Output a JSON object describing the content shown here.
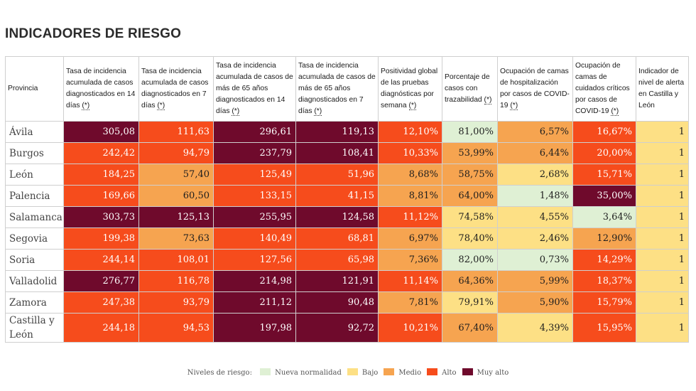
{
  "title": "INDICADORES DE RIESGO",
  "columns": [
    {
      "text": "Provincia",
      "star": ""
    },
    {
      "text": "Tasa de incidencia acumulada de casos diagnosticados en 14 días ",
      "star": "(*)"
    },
    {
      "text": "Tasa de incidencia acumulada de casos diagnosticados en 7 días ",
      "star": "(*)"
    },
    {
      "text": "Tasa de incidencia acumulada de casos de más de 65 años diagnosticados en 14 días ",
      "star": "(*)"
    },
    {
      "text": "Tasa de incidencia acumulada de casos de más de 65 años diagnosticados en 7 días ",
      "star": "(*)"
    },
    {
      "text": "Positividad global de las pruebas diagnósticas por semana ",
      "star": "(*)"
    },
    {
      "text": "Porcentaje de casos con trazabilidad ",
      "star": "(*)"
    },
    {
      "text": "Ocupación de camas de hospitalización por casos de COVID-19 ",
      "star": "(*)"
    },
    {
      "text": "Ocupación de camas de cuidados críticos por casos de COVID-19 ",
      "star": "(*)"
    },
    {
      "text": "Indicador de nivel de alerta en Castilla y León",
      "star": ""
    }
  ],
  "rows": [
    {
      "province": "Ávila",
      "cells": [
        {
          "v": "305,08",
          "lvl": "VH"
        },
        {
          "v": "111,63",
          "lvl": "H"
        },
        {
          "v": "296,61",
          "lvl": "VH"
        },
        {
          "v": "119,13",
          "lvl": "VH"
        },
        {
          "v": "12,10%",
          "lvl": "H"
        },
        {
          "v": "81,00%",
          "lvl": "N"
        },
        {
          "v": "6,57%",
          "lvl": "M"
        },
        {
          "v": "16,67%",
          "lvl": "H"
        },
        {
          "v": "1",
          "lvl": "L"
        }
      ]
    },
    {
      "province": "Burgos",
      "cells": [
        {
          "v": "242,42",
          "lvl": "H"
        },
        {
          "v": "94,79",
          "lvl": "H"
        },
        {
          "v": "237,79",
          "lvl": "VH"
        },
        {
          "v": "108,41",
          "lvl": "VH"
        },
        {
          "v": "10,33%",
          "lvl": "H"
        },
        {
          "v": "53,99%",
          "lvl": "M"
        },
        {
          "v": "6,44%",
          "lvl": "M"
        },
        {
          "v": "20,00%",
          "lvl": "H"
        },
        {
          "v": "1",
          "lvl": "L"
        }
      ]
    },
    {
      "province": "León",
      "cells": [
        {
          "v": "184,25",
          "lvl": "H"
        },
        {
          "v": "57,40",
          "lvl": "M"
        },
        {
          "v": "125,49",
          "lvl": "H"
        },
        {
          "v": "51,96",
          "lvl": "H"
        },
        {
          "v": "8,68%",
          "lvl": "M"
        },
        {
          "v": "58,75%",
          "lvl": "M"
        },
        {
          "v": "2,68%",
          "lvl": "L"
        },
        {
          "v": "15,71%",
          "lvl": "H"
        },
        {
          "v": "1",
          "lvl": "L"
        }
      ]
    },
    {
      "province": "Palencia",
      "cells": [
        {
          "v": "169,66",
          "lvl": "H"
        },
        {
          "v": "60,50",
          "lvl": "M"
        },
        {
          "v": "133,15",
          "lvl": "H"
        },
        {
          "v": "41,15",
          "lvl": "H"
        },
        {
          "v": "8,81%",
          "lvl": "M"
        },
        {
          "v": "64,00%",
          "lvl": "M"
        },
        {
          "v": "1,48%",
          "lvl": "N"
        },
        {
          "v": "35,00%",
          "lvl": "VH"
        },
        {
          "v": "1",
          "lvl": "L"
        }
      ]
    },
    {
      "province": "Salamanca",
      "cells": [
        {
          "v": "303,73",
          "lvl": "VH"
        },
        {
          "v": "125,13",
          "lvl": "VH"
        },
        {
          "v": "255,95",
          "lvl": "VH"
        },
        {
          "v": "124,58",
          "lvl": "VH"
        },
        {
          "v": "11,12%",
          "lvl": "H"
        },
        {
          "v": "74,58%",
          "lvl": "L"
        },
        {
          "v": "4,55%",
          "lvl": "L"
        },
        {
          "v": "3,64%",
          "lvl": "N"
        },
        {
          "v": "1",
          "lvl": "L"
        }
      ]
    },
    {
      "province": "Segovia",
      "cells": [
        {
          "v": "199,38",
          "lvl": "H"
        },
        {
          "v": "73,63",
          "lvl": "M"
        },
        {
          "v": "140,49",
          "lvl": "H"
        },
        {
          "v": "68,81",
          "lvl": "H"
        },
        {
          "v": "6,97%",
          "lvl": "M"
        },
        {
          "v": "78,40%",
          "lvl": "L"
        },
        {
          "v": "2,46%",
          "lvl": "L"
        },
        {
          "v": "12,90%",
          "lvl": "M"
        },
        {
          "v": "1",
          "lvl": "L"
        }
      ]
    },
    {
      "province": "Soria",
      "cells": [
        {
          "v": "244,14",
          "lvl": "H"
        },
        {
          "v": "108,01",
          "lvl": "H"
        },
        {
          "v": "127,56",
          "lvl": "H"
        },
        {
          "v": "65,98",
          "lvl": "H"
        },
        {
          "v": "7,36%",
          "lvl": "M"
        },
        {
          "v": "82,00%",
          "lvl": "N"
        },
        {
          "v": "0,73%",
          "lvl": "N"
        },
        {
          "v": "14,29%",
          "lvl": "H"
        },
        {
          "v": "1",
          "lvl": "L"
        }
      ]
    },
    {
      "province": "Valladolid",
      "cells": [
        {
          "v": "276,77",
          "lvl": "VH"
        },
        {
          "v": "116,78",
          "lvl": "H"
        },
        {
          "v": "214,98",
          "lvl": "VH"
        },
        {
          "v": "121,91",
          "lvl": "VH"
        },
        {
          "v": "11,14%",
          "lvl": "H"
        },
        {
          "v": "64,36%",
          "lvl": "M"
        },
        {
          "v": "5,99%",
          "lvl": "M"
        },
        {
          "v": "18,37%",
          "lvl": "H"
        },
        {
          "v": "1",
          "lvl": "L"
        }
      ]
    },
    {
      "province": "Zamora",
      "cells": [
        {
          "v": "247,38",
          "lvl": "H"
        },
        {
          "v": "93,79",
          "lvl": "H"
        },
        {
          "v": "211,12",
          "lvl": "VH"
        },
        {
          "v": "90,48",
          "lvl": "VH"
        },
        {
          "v": "7,81%",
          "lvl": "M"
        },
        {
          "v": "79,91%",
          "lvl": "L"
        },
        {
          "v": "5,90%",
          "lvl": "M"
        },
        {
          "v": "15,79%",
          "lvl": "H"
        },
        {
          "v": "1",
          "lvl": "L"
        }
      ]
    },
    {
      "province": "Castilla y León",
      "cells": [
        {
          "v": "244,18",
          "lvl": "H"
        },
        {
          "v": "94,53",
          "lvl": "H"
        },
        {
          "v": "197,98",
          "lvl": "VH"
        },
        {
          "v": "92,72",
          "lvl": "VH"
        },
        {
          "v": "10,21%",
          "lvl": "H"
        },
        {
          "v": "67,40%",
          "lvl": "M"
        },
        {
          "v": "4,39%",
          "lvl": "L"
        },
        {
          "v": "15,95%",
          "lvl": "H"
        },
        {
          "v": "1",
          "lvl": "L"
        }
      ]
    }
  ],
  "legend": {
    "label": "Niveles de riesgo:",
    "items": [
      {
        "label": "Nueva normalidad",
        "color": "#dff0d4"
      },
      {
        "label": "Bajo",
        "color": "#fde085"
      },
      {
        "label": "Medio",
        "color": "#f6a450"
      },
      {
        "label": "Alto",
        "color": "#f64c1c"
      },
      {
        "label": "Muy alto",
        "color": "#6f0a2c"
      }
    ]
  }
}
